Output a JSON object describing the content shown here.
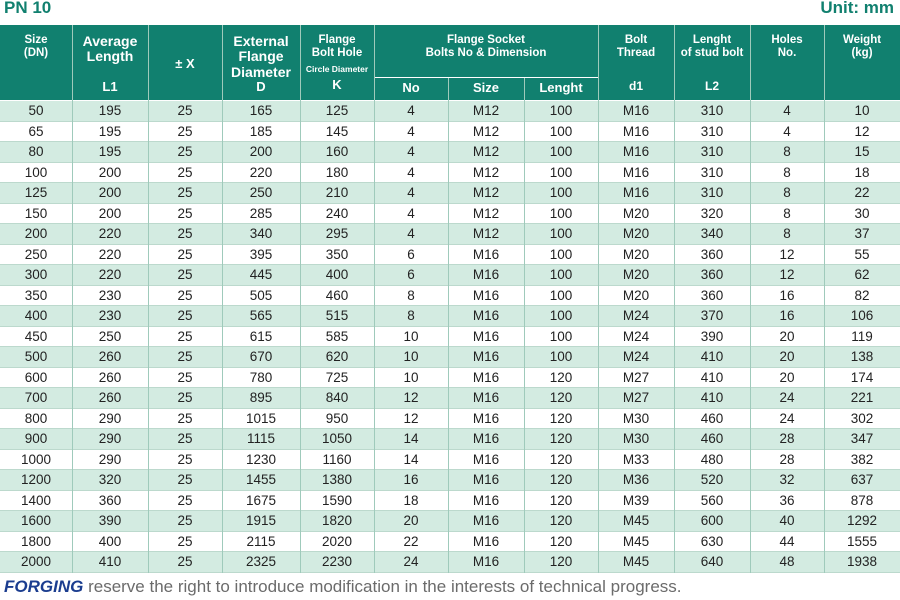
{
  "title": "PN 10",
  "unit": "Unit: mm",
  "header": {
    "size": [
      "Size",
      "(DN)"
    ],
    "average_length": [
      "Average",
      "Length"
    ],
    "l1": "L1",
    "tolerance": "± X",
    "external_diameter": [
      "External",
      "Flange",
      "Diameter"
    ],
    "d": "D",
    "bolt_hole": [
      "Flange",
      "Bolt Hole"
    ],
    "circle_diameter": "Circle Diameter",
    "k": "K",
    "socket": [
      "Flange Socket",
      "Bolts No & Dimension"
    ],
    "no": "No",
    "socket_size": "Size",
    "socket_length": "Lenght",
    "bolt_thread": [
      "Bolt",
      "Thread"
    ],
    "d1": "d1",
    "stud_length": [
      "Lenght",
      "of stud bolt"
    ],
    "l2": "L2",
    "holes": [
      "Holes",
      "No."
    ],
    "weight": [
      "Weight",
      "(kg)"
    ]
  },
  "table": {
    "rows": [
      [
        50,
        195,
        25,
        165,
        125,
        4,
        "M12",
        100,
        "M16",
        310,
        4,
        10
      ],
      [
        65,
        195,
        25,
        185,
        145,
        4,
        "M12",
        100,
        "M16",
        310,
        4,
        12
      ],
      [
        80,
        195,
        25,
        200,
        160,
        4,
        "M12",
        100,
        "M16",
        310,
        8,
        15
      ],
      [
        100,
        200,
        25,
        220,
        180,
        4,
        "M12",
        100,
        "M16",
        310,
        8,
        18
      ],
      [
        125,
        200,
        25,
        250,
        210,
        4,
        "M12",
        100,
        "M16",
        310,
        8,
        22
      ],
      [
        150,
        200,
        25,
        285,
        240,
        4,
        "M12",
        100,
        "M20",
        320,
        8,
        30
      ],
      [
        200,
        220,
        25,
        340,
        295,
        4,
        "M12",
        100,
        "M20",
        340,
        8,
        37
      ],
      [
        250,
        220,
        25,
        395,
        350,
        6,
        "M16",
        100,
        "M20",
        360,
        12,
        55
      ],
      [
        300,
        220,
        25,
        445,
        400,
        6,
        "M16",
        100,
        "M20",
        360,
        12,
        62
      ],
      [
        350,
        230,
        25,
        505,
        460,
        8,
        "M16",
        100,
        "M20",
        360,
        16,
        82
      ],
      [
        400,
        230,
        25,
        565,
        515,
        8,
        "M16",
        100,
        "M24",
        370,
        16,
        106
      ],
      [
        450,
        250,
        25,
        615,
        585,
        10,
        "M16",
        100,
        "M24",
        390,
        20,
        119
      ],
      [
        500,
        260,
        25,
        670,
        620,
        10,
        "M16",
        100,
        "M24",
        410,
        20,
        138
      ],
      [
        600,
        260,
        25,
        780,
        725,
        10,
        "M16",
        120,
        "M27",
        410,
        20,
        174
      ],
      [
        700,
        260,
        25,
        895,
        840,
        12,
        "M16",
        120,
        "M27",
        410,
        24,
        221
      ],
      [
        800,
        290,
        25,
        1015,
        950,
        12,
        "M16",
        120,
        "M30",
        460,
        24,
        302
      ],
      [
        900,
        290,
        25,
        1115,
        1050,
        14,
        "M16",
        120,
        "M30",
        460,
        28,
        347
      ],
      [
        1000,
        290,
        25,
        1230,
        1160,
        14,
        "M16",
        120,
        "M33",
        480,
        28,
        382
      ],
      [
        1200,
        320,
        25,
        1455,
        1380,
        16,
        "M16",
        120,
        "M36",
        520,
        32,
        637
      ],
      [
        1400,
        360,
        25,
        1675,
        1590,
        18,
        "M16",
        120,
        "M39",
        560,
        36,
        878
      ],
      [
        1600,
        390,
        25,
        1915,
        1820,
        20,
        "M16",
        120,
        "M45",
        600,
        40,
        1292
      ],
      [
        1800,
        400,
        25,
        2115,
        2020,
        22,
        "M16",
        120,
        "M45",
        630,
        44,
        1555
      ],
      [
        2000,
        410,
        25,
        2325,
        2230,
        24,
        "M16",
        120,
        "M45",
        640,
        48,
        1938
      ]
    ]
  },
  "footer": {
    "brand": "FORGING",
    "text": "reserve the right to introduce modification in the interests of technical progress."
  }
}
